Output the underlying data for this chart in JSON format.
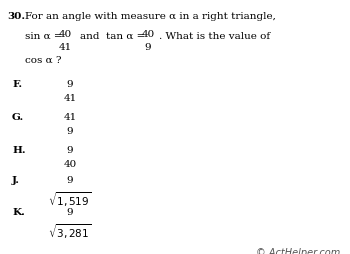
{
  "bg_color": "#ffffff",
  "font_color": "#000000",
  "watermark_color": "#555555",
  "question_number": "30.",
  "line1_after_num": "For an angle with measure α in a right triangle,",
  "line2_prefix": "sin α =",
  "frac1_num": "40",
  "frac1_den": "41",
  "line2_mid": "and  tan α =",
  "frac2_num": "40",
  "frac2_den": "9",
  "line2_suffix": ".",
  "line2_suffix2": "What is the value of",
  "line3": "cos α ?",
  "choices": [
    {
      "label": "F.",
      "numerator": "9",
      "denominator": "41",
      "is_sqrt_denom": false
    },
    {
      "label": "G.",
      "numerator": "41",
      "denominator": "9",
      "is_sqrt_denom": false
    },
    {
      "label": "H.",
      "numerator": "9",
      "denominator": "40",
      "is_sqrt_denom": false
    },
    {
      "label": "J.",
      "numerator": "9",
      "denominator": "1,519",
      "is_sqrt_denom": true
    },
    {
      "label": "K.",
      "numerator": "9",
      "denominator": "3,281",
      "is_sqrt_denom": true
    }
  ],
  "watermark": "© ActHelper.com"
}
